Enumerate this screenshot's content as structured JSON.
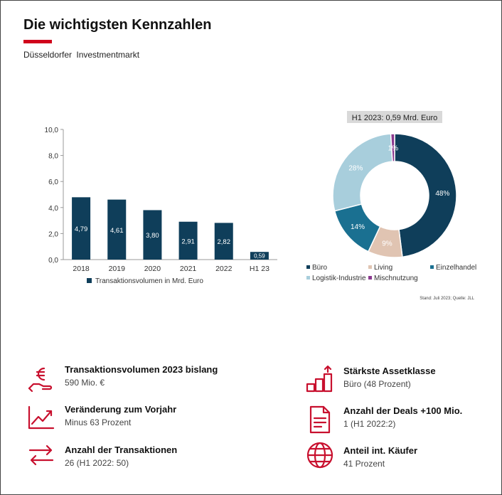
{
  "header": {
    "title": "Die wichtigsten Kennzahlen",
    "subtitle": "Düsseldorfer  Investmentmarkt"
  },
  "chart_data": [
    {
      "type": "bar",
      "categories": [
        "2018",
        "2019",
        "2020",
        "2021",
        "2022",
        "H1 23"
      ],
      "values": [
        4.79,
        4.61,
        3.8,
        2.91,
        2.82,
        0.59
      ],
      "value_labels": [
        "4,79",
        "4,61",
        "3,80",
        "2,91",
        "2,82",
        "0,59"
      ],
      "y_ticks": [
        "0,0",
        "2,0",
        "4,0",
        "6,0",
        "8,0",
        "10,0"
      ],
      "ylim": [
        0,
        10
      ],
      "legend": "Transaktionsvolumen in Mrd. Euro",
      "legend_position": "bottom",
      "grid": false,
      "color": "#0f3e5a"
    },
    {
      "type": "pie",
      "title": "H1 2023: 0,59 Mrd. Euro",
      "slices": [
        {
          "name": "Büro",
          "value": 48,
          "label": "48%",
          "color": "#0f3e5a"
        },
        {
          "name": "Living",
          "value": 9,
          "label": "9%",
          "color": "#e0c4b2"
        },
        {
          "name": "Einzelhandel",
          "value": 14,
          "label": "14%",
          "color": "#1a7091"
        },
        {
          "name": "Logistik-Industrie",
          "value": 28,
          "label": "28%",
          "color": "#a8cedc"
        },
        {
          "name": "Mischnutzung",
          "value": 1,
          "label": "1%",
          "color": "#8b3a8f"
        }
      ],
      "legend_position": "bottom",
      "source": "Stand: Juli 2023; Quelle: JLL"
    }
  ],
  "kpis": [
    {
      "title": "Transaktionsvolumen 2023 bislang",
      "value": "590 Mio. €",
      "icon": "euro-hand-icon"
    },
    {
      "title": "Veränderung zum Vorjahr",
      "value": "Minus 63 Prozent",
      "icon": "trend-chart-icon"
    },
    {
      "title": "Anzahl der Transaktionen",
      "value": "26 (H1 2022: 50)",
      "icon": "swap-arrows-icon"
    },
    {
      "title": "Stärkste Assetklasse",
      "value": "Büro (48 Prozent)",
      "icon": "growth-steps-icon"
    },
    {
      "title": "Anzahl der Deals +100 Mio.",
      "value": "1 (H1 2022:2)",
      "icon": "document-icon"
    },
    {
      "title": "Anteil int. Käufer",
      "value": "41 Prozent",
      "icon": "globe-icon"
    }
  ],
  "colors": {
    "accent": "#d0021b",
    "icon": "#c8102e"
  }
}
